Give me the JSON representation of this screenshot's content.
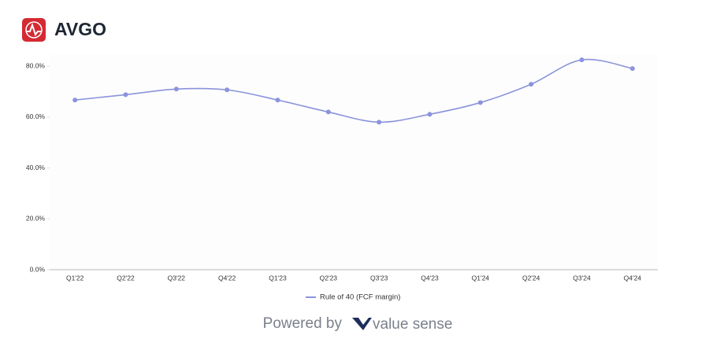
{
  "header": {
    "ticker": "AVGO"
  },
  "chart_data": {
    "type": "line",
    "categories": [
      "Q1'22",
      "Q2'22",
      "Q3'22",
      "Q4'22",
      "Q1'23",
      "Q2'23",
      "Q3'23",
      "Q4'23",
      "Q1'24",
      "Q2'24",
      "Q3'24",
      "Q4'24"
    ],
    "series": [
      {
        "name": "Rule of 40 (FCF margin)",
        "color": "#8b93dc",
        "values": [
          66.7,
          68.8,
          71.0,
          70.7,
          66.7,
          62.0,
          58.0,
          61.1,
          65.7,
          72.9,
          82.5,
          79.1
        ]
      }
    ],
    "ylim": [
      0,
      85
    ],
    "yticks": [
      {
        "value": 0,
        "label": "0.0%"
      },
      {
        "value": 20,
        "label": "20.0%"
      },
      {
        "value": 40,
        "label": "40.0%"
      },
      {
        "value": 60,
        "label": "60.0%"
      },
      {
        "value": 80,
        "label": "80.0%"
      }
    ],
    "legend": "bottom"
  },
  "footer": {
    "powered_by": "Powered by",
    "brand": "value sense"
  }
}
